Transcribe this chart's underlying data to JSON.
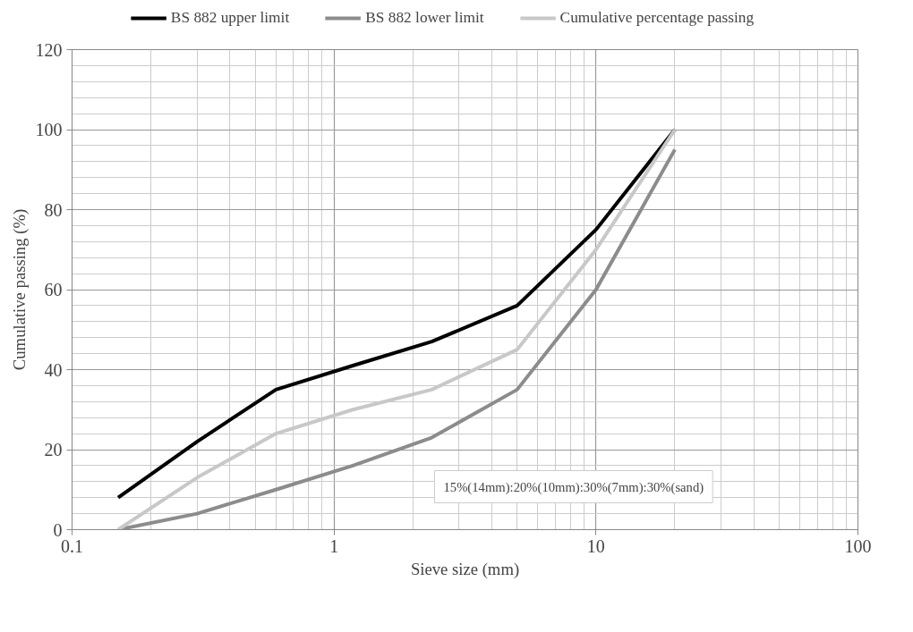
{
  "chart_data": {
    "type": "line",
    "xlabel": "Sieve size (mm)",
    "ylabel": "Cumulative passing (%)",
    "x": [
      0.15,
      0.3,
      0.6,
      1.18,
      2.36,
      5,
      10,
      20
    ],
    "series": [
      {
        "name": "BS 882 upper limit",
        "color": "#000000",
        "values": [
          8,
          22,
          35,
          41,
          47,
          56,
          75,
          100
        ]
      },
      {
        "name": "BS 882 lower limit",
        "color": "#8c8c8c",
        "values": [
          0,
          4,
          10,
          16,
          23,
          35,
          60,
          95
        ]
      },
      {
        "name": "Cumulative percentage passing",
        "color": "#c8c8c8",
        "values": [
          0,
          13,
          24,
          30,
          35,
          45,
          70,
          100
        ]
      }
    ],
    "xlim": [
      0.1,
      100
    ],
    "ylim": [
      0,
      120
    ],
    "xticks": [
      0.1,
      1,
      10,
      100
    ],
    "yticks": [
      0,
      20,
      40,
      60,
      80,
      100,
      120
    ],
    "log": "x",
    "grid": true,
    "legend": "top",
    "line_style": "solid",
    "annotations": [
      "15%(14mm):20%(10mm):30%(7mm):30%(sand)"
    ]
  }
}
